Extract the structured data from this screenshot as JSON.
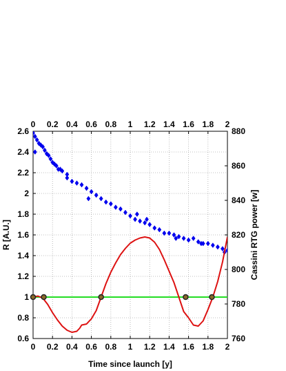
{
  "chart_data": {
    "type": "line",
    "xlabel": "Time since launch [y]",
    "ylabel_left": "R [A.U.]",
    "ylabel_right": "Cassini RTG power [w]",
    "xlim": [
      0,
      2
    ],
    "ylim_left": [
      0.6,
      2.6
    ],
    "ylim_right": [
      760,
      880
    ],
    "x_ticks": [
      "0",
      "0.2",
      "0.4",
      "0.6",
      "0.8",
      "1",
      "1.2",
      "1.4",
      "1.6",
      "1.8",
      "2"
    ],
    "y_left_ticks": [
      "0.6",
      "0.8",
      "1",
      "1.2",
      "1.4",
      "1.6",
      "1.8",
      "2",
      "2.2",
      "2.4",
      "2.6"
    ],
    "y_right_ticks": [
      "760",
      "780",
      "800",
      "820",
      "840",
      "860",
      "880"
    ],
    "grid": true,
    "colors": {
      "distance": "#dd1111",
      "reference": "#22dd22",
      "power": "#0000ee",
      "crossing": "#222222"
    },
    "series": [
      {
        "axis": "left",
        "style": "line",
        "x": [
          0,
          0.05,
          0.1,
          0.15,
          0.2,
          0.25,
          0.3,
          0.35,
          0.4,
          0.45,
          0.48,
          0.5,
          0.55,
          0.6,
          0.65,
          0.7,
          0.75,
          0.8,
          0.85,
          0.9,
          0.95,
          1.0,
          1.05,
          1.1,
          1.15,
          1.2,
          1.25,
          1.3,
          1.35,
          1.4,
          1.45,
          1.5,
          1.55,
          1.6,
          1.65,
          1.7,
          1.75,
          1.8,
          1.85,
          1.9,
          1.95,
          2.0
        ],
        "y": [
          1.0,
          1.01,
          0.99,
          0.93,
          0.85,
          0.78,
          0.72,
          0.68,
          0.66,
          0.67,
          0.7,
          0.73,
          0.74,
          0.79,
          0.87,
          1.0,
          1.13,
          1.24,
          1.33,
          1.41,
          1.47,
          1.52,
          1.55,
          1.57,
          1.58,
          1.57,
          1.53,
          1.46,
          1.36,
          1.25,
          1.14,
          1.0,
          0.86,
          0.8,
          0.73,
          0.72,
          0.77,
          0.88,
          1.0,
          1.15,
          1.34,
          1.58
        ]
      },
      {
        "axis": "left",
        "style": "line",
        "x": [
          0,
          2
        ],
        "y": [
          1.0,
          1.0
        ]
      },
      {
        "axis": "right",
        "style": "diamond-markers",
        "x": [
          0.0,
          0.02,
          0.04,
          0.06,
          0.08,
          0.1,
          0.12,
          0.14,
          0.16,
          0.18,
          0.2,
          0.22,
          0.24,
          0.26,
          0.28,
          0.3,
          0.35,
          0.4,
          0.45,
          0.5,
          0.55,
          0.6,
          0.65,
          0.7,
          0.75,
          0.8,
          0.85,
          0.9,
          0.95,
          1.0,
          1.05,
          1.1,
          1.15,
          1.2,
          1.25,
          1.3,
          1.35,
          1.4,
          1.45,
          1.5,
          1.55,
          1.6,
          1.65,
          1.7,
          1.75,
          1.8,
          1.85,
          1.9,
          1.95,
          2.0,
          0.02,
          0.35,
          0.57,
          1.07,
          1.17,
          1.47,
          1.73,
          1.97
        ],
        "y": [
          879,
          877,
          875,
          873,
          872,
          871,
          869,
          867,
          866,
          864,
          862,
          861,
          860,
          858,
          858,
          857,
          853,
          851,
          850,
          849,
          847,
          845,
          843,
          841,
          839,
          838,
          836,
          835,
          833,
          831,
          829,
          828,
          827,
          826,
          824,
          823,
          821,
          821,
          820,
          819,
          818,
          817,
          818,
          816,
          815,
          815,
          814,
          813,
          812,
          811,
          868,
          855,
          841,
          832,
          829,
          818,
          815,
          810
        ]
      }
    ],
    "crossings": {
      "x": [
        0.0,
        0.11,
        0.7,
        1.57,
        1.84
      ],
      "y": [
        1.0,
        1.0,
        1.0,
        1.0,
        1.0
      ]
    }
  }
}
